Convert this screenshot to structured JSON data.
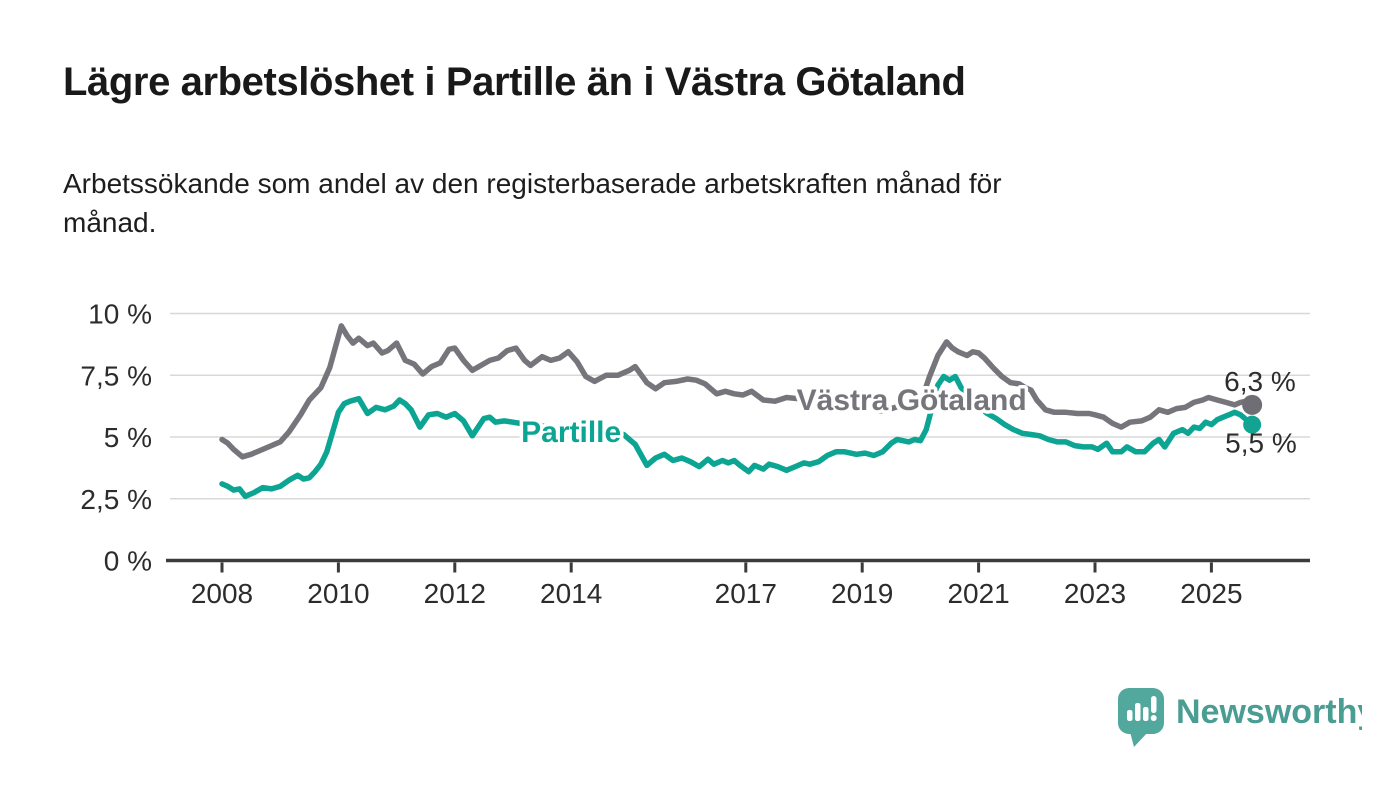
{
  "chart_data": {
    "type": "line",
    "title": "Lägre arbetslöshet i Partille än i Västra Götaland",
    "subtitle_line1": "Arbetssökande som andel av den registerbaserade arbetskraften månad för",
    "subtitle_line2": "månad.",
    "x_axis": {
      "tick_years": [
        2008,
        2010,
        2012,
        2014,
        2017,
        2019,
        2021,
        2023,
        2025
      ],
      "tick_labels": [
        "2008",
        "2010",
        "2012",
        "2014",
        "2017",
        "2019",
        "2021",
        "2023",
        "2025"
      ],
      "range_years": [
        2007.05,
        2026.7
      ]
    },
    "y_axis": {
      "tick_values": [
        0,
        2.5,
        5,
        7.5,
        10
      ],
      "tick_labels": [
        "0 %",
        "2,5 %",
        "5 %",
        "7,5 %",
        "10 %"
      ],
      "range": [
        0,
        10.5
      ],
      "grid": true
    },
    "unit": "%",
    "legend_position": "inline-labels",
    "series": [
      {
        "id": "vastra-gotaland",
        "name": "Västra Götaland",
        "color": "#75757B",
        "dot_color": "#6E6E74",
        "end_label": "6,3 %",
        "end_value": 6.3,
        "label_anchor": {
          "year": 2019.85,
          "value": 6.5
        },
        "points": [
          [
            2008.0,
            4.9
          ],
          [
            2008.1,
            4.75
          ],
          [
            2008.2,
            4.5
          ],
          [
            2008.35,
            4.2
          ],
          [
            2008.5,
            4.3
          ],
          [
            2008.65,
            4.45
          ],
          [
            2008.8,
            4.6
          ],
          [
            2009.0,
            4.8
          ],
          [
            2009.15,
            5.2
          ],
          [
            2009.35,
            5.9
          ],
          [
            2009.5,
            6.5
          ],
          [
            2009.7,
            7.0
          ],
          [
            2009.85,
            7.8
          ],
          [
            2010.05,
            9.5
          ],
          [
            2010.15,
            9.1
          ],
          [
            2010.25,
            8.8
          ],
          [
            2010.35,
            9.0
          ],
          [
            2010.5,
            8.7
          ],
          [
            2010.6,
            8.8
          ],
          [
            2010.75,
            8.4
          ],
          [
            2010.85,
            8.5
          ],
          [
            2011.0,
            8.8
          ],
          [
            2011.15,
            8.1
          ],
          [
            2011.3,
            7.95
          ],
          [
            2011.45,
            7.55
          ],
          [
            2011.6,
            7.85
          ],
          [
            2011.75,
            8.0
          ],
          [
            2011.9,
            8.55
          ],
          [
            2012.0,
            8.6
          ],
          [
            2012.15,
            8.1
          ],
          [
            2012.3,
            7.7
          ],
          [
            2012.45,
            7.9
          ],
          [
            2012.6,
            8.1
          ],
          [
            2012.75,
            8.2
          ],
          [
            2012.9,
            8.5
          ],
          [
            2013.05,
            8.6
          ],
          [
            2013.2,
            8.1
          ],
          [
            2013.3,
            7.9
          ],
          [
            2013.5,
            8.25
          ],
          [
            2013.65,
            8.1
          ],
          [
            2013.8,
            8.2
          ],
          [
            2013.95,
            8.45
          ],
          [
            2014.1,
            8.05
          ],
          [
            2014.25,
            7.45
          ],
          [
            2014.4,
            7.25
          ],
          [
            2014.6,
            7.5
          ],
          [
            2014.8,
            7.5
          ],
          [
            2015.0,
            7.7
          ],
          [
            2015.1,
            7.85
          ],
          [
            2015.3,
            7.2
          ],
          [
            2015.45,
            6.95
          ],
          [
            2015.6,
            7.2
          ],
          [
            2015.8,
            7.25
          ],
          [
            2016.0,
            7.35
          ],
          [
            2016.15,
            7.3
          ],
          [
            2016.3,
            7.15
          ],
          [
            2016.5,
            6.75
          ],
          [
            2016.65,
            6.85
          ],
          [
            2016.8,
            6.75
          ],
          [
            2016.95,
            6.7
          ],
          [
            2017.1,
            6.85
          ],
          [
            2017.3,
            6.5
          ],
          [
            2017.5,
            6.45
          ],
          [
            2017.7,
            6.6
          ],
          [
            2017.9,
            6.55
          ],
          [
            2018.1,
            6.45
          ],
          [
            2018.3,
            6.35
          ],
          [
            2018.5,
            6.45
          ],
          [
            2018.7,
            6.5
          ],
          [
            2018.9,
            6.45
          ],
          [
            2019.1,
            6.3
          ],
          [
            2019.3,
            6.05
          ],
          [
            2019.5,
            6.15
          ],
          [
            2019.7,
            6.3
          ],
          [
            2019.9,
            6.45
          ],
          [
            2020.05,
            6.7
          ],
          [
            2020.15,
            7.4
          ],
          [
            2020.3,
            8.3
          ],
          [
            2020.45,
            8.85
          ],
          [
            2020.55,
            8.6
          ],
          [
            2020.65,
            8.45
          ],
          [
            2020.8,
            8.3
          ],
          [
            2020.9,
            8.45
          ],
          [
            2021.0,
            8.4
          ],
          [
            2021.1,
            8.2
          ],
          [
            2021.25,
            7.8
          ],
          [
            2021.4,
            7.45
          ],
          [
            2021.55,
            7.2
          ],
          [
            2021.7,
            7.15
          ],
          [
            2021.8,
            7.0
          ],
          [
            2021.9,
            6.9
          ],
          [
            2022.0,
            6.5
          ],
          [
            2022.15,
            6.1
          ],
          [
            2022.3,
            6.0
          ],
          [
            2022.5,
            6.0
          ],
          [
            2022.7,
            5.95
          ],
          [
            2022.9,
            5.95
          ],
          [
            2023.0,
            5.9
          ],
          [
            2023.15,
            5.8
          ],
          [
            2023.3,
            5.55
          ],
          [
            2023.45,
            5.4
          ],
          [
            2023.6,
            5.6
          ],
          [
            2023.8,
            5.65
          ],
          [
            2023.95,
            5.8
          ],
          [
            2024.1,
            6.1
          ],
          [
            2024.25,
            6.0
          ],
          [
            2024.4,
            6.15
          ],
          [
            2024.55,
            6.2
          ],
          [
            2024.7,
            6.4
          ],
          [
            2024.85,
            6.5
          ],
          [
            2024.95,
            6.6
          ],
          [
            2025.1,
            6.5
          ],
          [
            2025.25,
            6.4
          ],
          [
            2025.4,
            6.3
          ],
          [
            2025.5,
            6.4
          ],
          [
            2025.6,
            6.45
          ],
          [
            2025.7,
            6.3
          ]
        ]
      },
      {
        "id": "partille",
        "name": "Partille",
        "color": "#0CA492",
        "dot_color": "#12A492",
        "end_label": "5,5 %",
        "end_value": 5.5,
        "label_anchor": {
          "year": 2014.0,
          "value": 5.2
        },
        "points": [
          [
            2008.0,
            3.1
          ],
          [
            2008.1,
            3.0
          ],
          [
            2008.2,
            2.85
          ],
          [
            2008.3,
            2.9
          ],
          [
            2008.4,
            2.6
          ],
          [
            2008.55,
            2.75
          ],
          [
            2008.7,
            2.95
          ],
          [
            2008.85,
            2.9
          ],
          [
            2009.0,
            3.0
          ],
          [
            2009.15,
            3.25
          ],
          [
            2009.3,
            3.45
          ],
          [
            2009.4,
            3.3
          ],
          [
            2009.5,
            3.35
          ],
          [
            2009.6,
            3.6
          ],
          [
            2009.7,
            3.9
          ],
          [
            2009.8,
            4.4
          ],
          [
            2009.9,
            5.2
          ],
          [
            2010.0,
            6.0
          ],
          [
            2010.1,
            6.35
          ],
          [
            2010.2,
            6.45
          ],
          [
            2010.35,
            6.55
          ],
          [
            2010.5,
            5.95
          ],
          [
            2010.65,
            6.2
          ],
          [
            2010.8,
            6.1
          ],
          [
            2010.95,
            6.25
          ],
          [
            2011.05,
            6.5
          ],
          [
            2011.15,
            6.35
          ],
          [
            2011.25,
            6.1
          ],
          [
            2011.4,
            5.4
          ],
          [
            2011.55,
            5.9
          ],
          [
            2011.7,
            5.95
          ],
          [
            2011.85,
            5.8
          ],
          [
            2012.0,
            5.95
          ],
          [
            2012.15,
            5.65
          ],
          [
            2012.3,
            5.05
          ],
          [
            2012.4,
            5.4
          ],
          [
            2012.5,
            5.75
          ],
          [
            2012.6,
            5.8
          ],
          [
            2012.7,
            5.6
          ],
          [
            2012.85,
            5.65
          ],
          [
            2013.0,
            5.6
          ],
          [
            2013.25,
            5.5
          ],
          [
            2013.5,
            5.45
          ],
          [
            2013.75,
            5.35
          ],
          [
            2014.0,
            5.25
          ],
          [
            2014.25,
            5.15
          ],
          [
            2014.5,
            5.05
          ],
          [
            2014.75,
            4.95
          ],
          [
            2014.9,
            5.1
          ],
          [
            2015.1,
            4.7
          ],
          [
            2015.3,
            3.85
          ],
          [
            2015.45,
            4.15
          ],
          [
            2015.6,
            4.3
          ],
          [
            2015.75,
            4.05
          ],
          [
            2015.9,
            4.15
          ],
          [
            2016.05,
            4.0
          ],
          [
            2016.2,
            3.8
          ],
          [
            2016.35,
            4.1
          ],
          [
            2016.45,
            3.9
          ],
          [
            2016.6,
            4.05
          ],
          [
            2016.7,
            3.95
          ],
          [
            2016.8,
            4.05
          ],
          [
            2016.9,
            3.85
          ],
          [
            2017.05,
            3.6
          ],
          [
            2017.15,
            3.85
          ],
          [
            2017.3,
            3.7
          ],
          [
            2017.4,
            3.9
          ],
          [
            2017.55,
            3.8
          ],
          [
            2017.7,
            3.65
          ],
          [
            2017.85,
            3.8
          ],
          [
            2018.0,
            3.95
          ],
          [
            2018.1,
            3.9
          ],
          [
            2018.25,
            4.0
          ],
          [
            2018.4,
            4.25
          ],
          [
            2018.55,
            4.4
          ],
          [
            2018.7,
            4.4
          ],
          [
            2018.9,
            4.3
          ],
          [
            2019.05,
            4.35
          ],
          [
            2019.2,
            4.25
          ],
          [
            2019.35,
            4.4
          ],
          [
            2019.5,
            4.75
          ],
          [
            2019.6,
            4.9
          ],
          [
            2019.7,
            4.85
          ],
          [
            2019.8,
            4.8
          ],
          [
            2019.9,
            4.9
          ],
          [
            2020.0,
            4.85
          ],
          [
            2020.1,
            5.3
          ],
          [
            2020.2,
            6.2
          ],
          [
            2020.3,
            7.1
          ],
          [
            2020.4,
            7.45
          ],
          [
            2020.5,
            7.3
          ],
          [
            2020.6,
            7.45
          ],
          [
            2020.7,
            7.0
          ],
          [
            2020.85,
            6.6
          ],
          [
            2021.0,
            6.25
          ],
          [
            2021.15,
            5.95
          ],
          [
            2021.3,
            5.75
          ],
          [
            2021.45,
            5.5
          ],
          [
            2021.6,
            5.3
          ],
          [
            2021.75,
            5.15
          ],
          [
            2021.9,
            5.1
          ],
          [
            2022.05,
            5.05
          ],
          [
            2022.2,
            4.9
          ],
          [
            2022.35,
            4.8
          ],
          [
            2022.5,
            4.8
          ],
          [
            2022.65,
            4.65
          ],
          [
            2022.8,
            4.6
          ],
          [
            2022.95,
            4.6
          ],
          [
            2023.05,
            4.5
          ],
          [
            2023.2,
            4.75
          ],
          [
            2023.3,
            4.4
          ],
          [
            2023.45,
            4.4
          ],
          [
            2023.55,
            4.6
          ],
          [
            2023.7,
            4.4
          ],
          [
            2023.85,
            4.4
          ],
          [
            2024.0,
            4.75
          ],
          [
            2024.1,
            4.9
          ],
          [
            2024.2,
            4.6
          ],
          [
            2024.35,
            5.15
          ],
          [
            2024.5,
            5.3
          ],
          [
            2024.6,
            5.15
          ],
          [
            2024.7,
            5.4
          ],
          [
            2024.8,
            5.35
          ],
          [
            2024.9,
            5.6
          ],
          [
            2025.0,
            5.5
          ],
          [
            2025.1,
            5.7
          ],
          [
            2025.2,
            5.8
          ],
          [
            2025.3,
            5.9
          ],
          [
            2025.4,
            6.0
          ],
          [
            2025.5,
            5.9
          ],
          [
            2025.6,
            5.7
          ],
          [
            2025.7,
            5.5
          ]
        ]
      }
    ]
  },
  "footer": {
    "brand": "Newsworthy",
    "brand_color": "#4A9D93",
    "icon": "newsworthy-speech-bubble-bar-chart-icon"
  },
  "colors": {
    "background": "#FFFFFF",
    "title_text": "#191919",
    "subtitle_text": "#1D1D1D",
    "axis_line": "#3B3B3B",
    "tick_label": "#2C2C2C",
    "gridline": "#D8D8D8",
    "end_label_text": "#2D2D2D"
  }
}
